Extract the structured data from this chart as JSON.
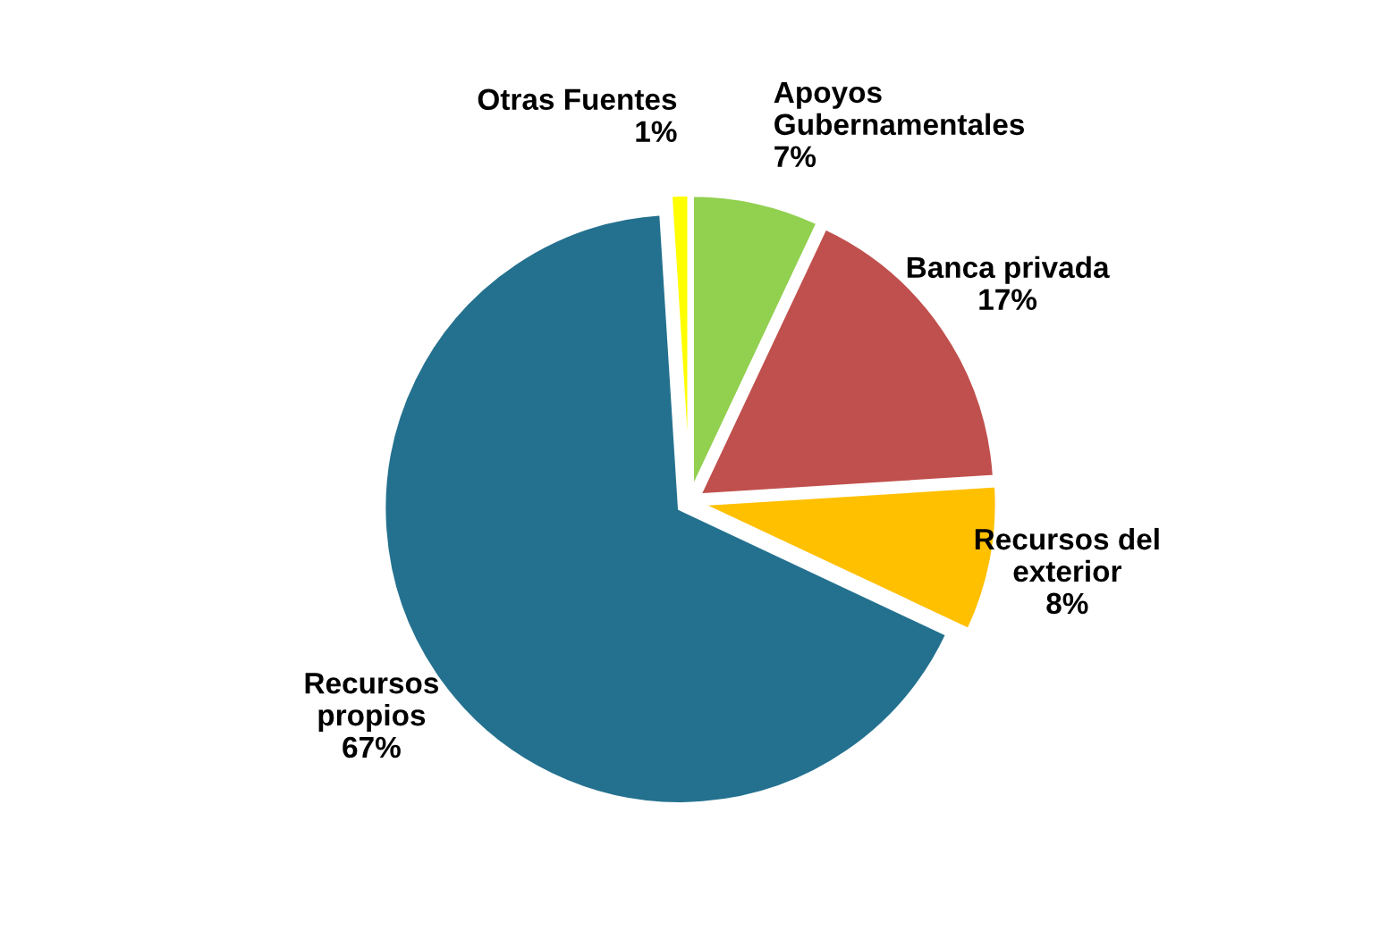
{
  "chart_data": {
    "type": "pie",
    "categories": [
      "Apoyos\nGubernamentales",
      "Banca privada",
      "Recursos del\nexterior",
      "Recursos\npropios",
      "Otras Fuentes"
    ],
    "values": [
      7,
      17,
      8,
      67,
      1
    ],
    "value_labels": [
      "7%",
      "17%",
      "8%",
      "67%",
      "1%"
    ],
    "colors": [
      "#92d050",
      "#c0504d",
      "#ffc000",
      "#24718f",
      "#ffff00"
    ],
    "legend": false
  }
}
